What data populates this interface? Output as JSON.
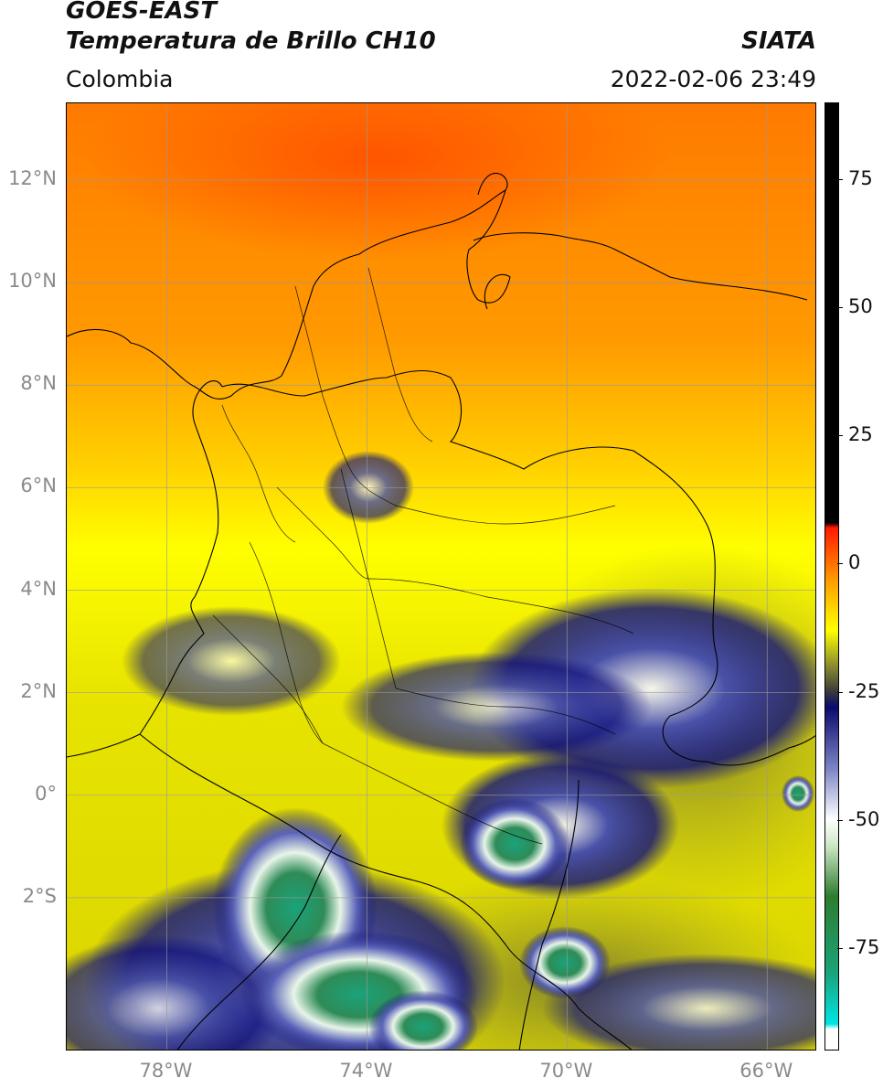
{
  "header": {
    "satellite": "GOES-EAST",
    "product": "Temperatura de Brillo CH10",
    "region": "Colombia",
    "source": "SIATA",
    "datetime": "2022-02-06 23:49"
  },
  "map": {
    "lat_range": [
      -5,
      13.5
    ],
    "lon_range": [
      -80,
      -65
    ],
    "lat_ticks": [
      {
        "value": 12,
        "label": "12°N"
      },
      {
        "value": 10,
        "label": "10°N"
      },
      {
        "value": 8,
        "label": "8°N"
      },
      {
        "value": 6,
        "label": "6°N"
      },
      {
        "value": 4,
        "label": "4°N"
      },
      {
        "value": 2,
        "label": "2°N"
      },
      {
        "value": 0,
        "label": "0°"
      },
      {
        "value": -2,
        "label": "2°S"
      }
    ],
    "lon_ticks": [
      {
        "value": -78,
        "label": "78°W"
      },
      {
        "value": -74,
        "label": "74°W"
      },
      {
        "value": -70,
        "label": "70°W"
      },
      {
        "value": -66,
        "label": "66°W"
      }
    ],
    "gridlines": true
  },
  "colorbar": {
    "range": [
      -95,
      90
    ],
    "ticks": [
      {
        "value": 75,
        "label": "75"
      },
      {
        "value": 50,
        "label": "50"
      },
      {
        "value": 25,
        "label": "25"
      },
      {
        "value": 0,
        "label": "0"
      },
      {
        "value": -25,
        "label": "-25"
      },
      {
        "value": -50,
        "label": "-50"
      },
      {
        "value": -75,
        "label": "-75"
      }
    ],
    "stops": [
      {
        "value": -95,
        "color": "#ffffff"
      },
      {
        "value": -91,
        "color": "#ffffff"
      },
      {
        "value": -90,
        "color": "#00e5e5"
      },
      {
        "value": -80,
        "color": "#1aa37a"
      },
      {
        "value": -65,
        "color": "#2e7d2e"
      },
      {
        "value": -55,
        "color": "#cfe8c8"
      },
      {
        "value": -50,
        "color": "#ffffff"
      },
      {
        "value": -40,
        "color": "#7b84c4"
      },
      {
        "value": -28,
        "color": "#0a0a6e"
      },
      {
        "value": -25,
        "color": "#3a3a3a"
      },
      {
        "value": -20,
        "color": "#8a8a30"
      },
      {
        "value": -13,
        "color": "#ffff00"
      },
      {
        "value": -4,
        "color": "#ffa500"
      },
      {
        "value": 7,
        "color": "#ff1a00"
      },
      {
        "value": 8,
        "color": "#000000"
      },
      {
        "value": 90,
        "color": "#000000"
      }
    ]
  }
}
